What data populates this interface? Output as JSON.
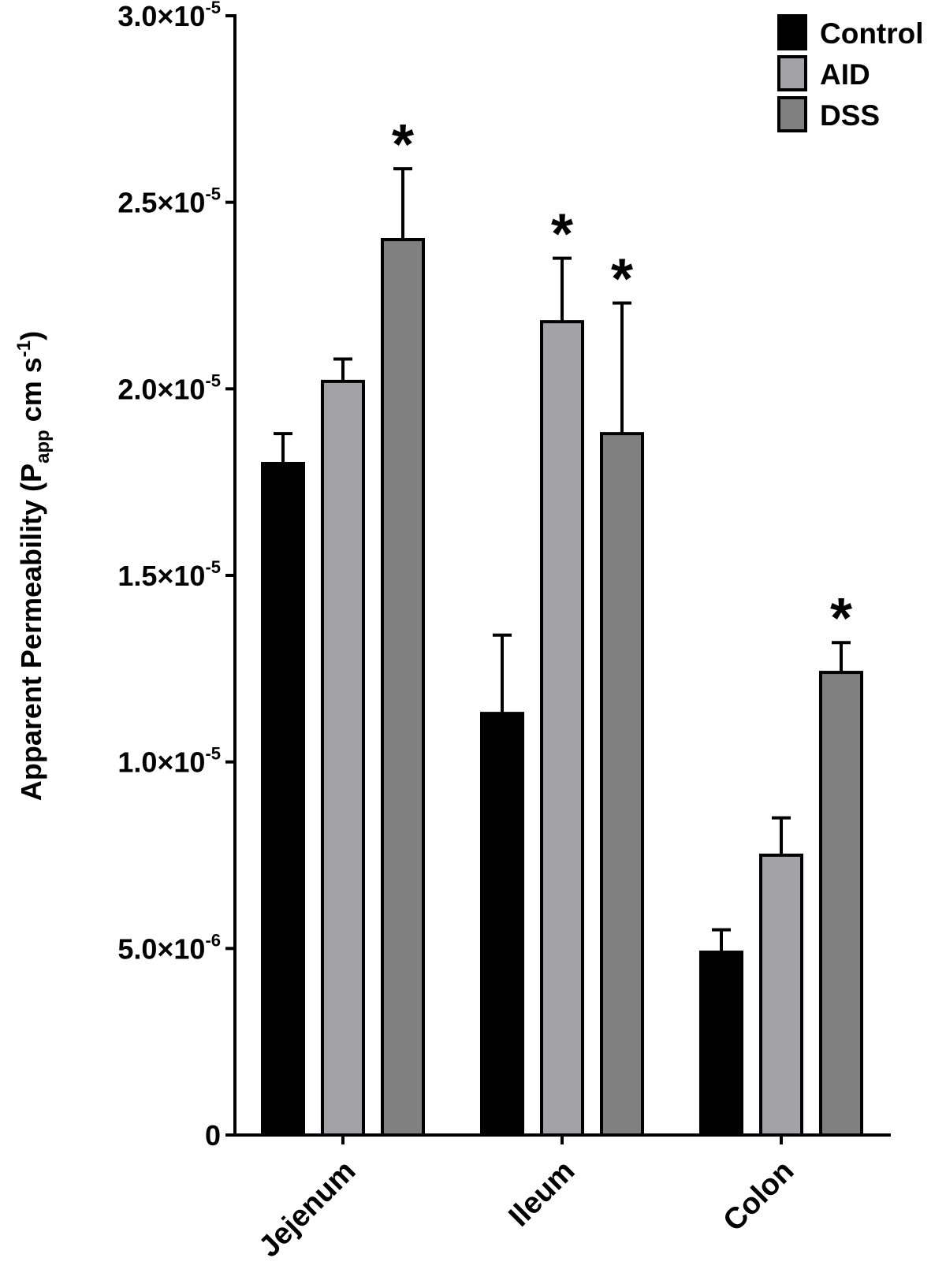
{
  "chart_data": {
    "type": "bar",
    "title": "",
    "xlabel": "",
    "ylabel": {
      "main": "Apparent Permeability (P",
      "sub": "app",
      "mid": " cm s",
      "sup": "-1",
      "end": ")"
    },
    "ylim": [
      0,
      3e-05
    ],
    "yticks": [
      {
        "value": 0,
        "base": "0",
        "exp": ""
      },
      {
        "value": 5e-06,
        "base": "5.0×10",
        "exp": "-6"
      },
      {
        "value": 1e-05,
        "base": "1.0×10",
        "exp": "-5"
      },
      {
        "value": 1.5e-05,
        "base": "1.5×10",
        "exp": "-5"
      },
      {
        "value": 2e-05,
        "base": "2.0×10",
        "exp": "-5"
      },
      {
        "value": 2.5e-05,
        "base": "2.5×10",
        "exp": "-5"
      },
      {
        "value": 3e-05,
        "base": "3.0×10",
        "exp": "-5"
      }
    ],
    "categories": [
      "Jejenum",
      "Ileum",
      "Colon"
    ],
    "series": [
      {
        "name": "Control",
        "color": "#000000",
        "values": [
          1.8e-05,
          1.13e-05,
          4.9e-06
        ],
        "errors": [
          8e-07,
          2.1e-06,
          6e-07
        ],
        "significant": [
          false,
          false,
          false
        ]
      },
      {
        "name": "AID",
        "color": "#a3a3a7",
        "values": [
          2.02e-05,
          2.18e-05,
          7.5e-06
        ],
        "errors": [
          6e-07,
          1.7e-06,
          1e-06
        ],
        "significant": [
          false,
          true,
          false
        ]
      },
      {
        "name": "DSS",
        "color": "#808080",
        "values": [
          2.4e-05,
          1.88e-05,
          1.24e-05
        ],
        "errors": [
          1.9e-06,
          3.5e-06,
          8e-07
        ],
        "significant": [
          true,
          true,
          true
        ]
      }
    ],
    "significance_marker": "*",
    "legend_position": "top-right"
  }
}
